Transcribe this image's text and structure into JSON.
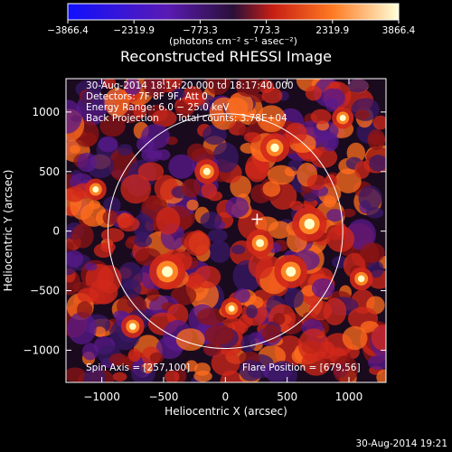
{
  "chart_data": {
    "type": "heatmap",
    "title": "Reconstructed RHESSI Image",
    "xlabel": "Heliocentric X (arcsec)",
    "ylabel": "Heliocentric Y (arcsec)",
    "xlim": [
      -1290,
      1300
    ],
    "ylim": [
      -1270,
      1280
    ],
    "x_ticks": [
      -1000,
      -500,
      0,
      500,
      1000
    ],
    "x_tick_labels": [
      "−1000",
      "−500",
      "0",
      "500",
      "1000"
    ],
    "y_ticks": [
      -1000,
      -500,
      0,
      500,
      1000
    ],
    "y_tick_labels": [
      "−1000",
      "−500",
      "0",
      "500",
      "1000"
    ],
    "colorbar": {
      "range": [
        -3866.4,
        3866.4
      ],
      "tick_values": [
        -3866.4,
        -2319.9,
        -773.3,
        773.3,
        2319.9,
        3866.4
      ],
      "tick_labels": [
        "−3866.4",
        "−2319.9",
        "−773.3",
        "773.3",
        "2319.9",
        "3866.4"
      ],
      "units": "(photons cm⁻² s⁻¹ asec⁻²)",
      "colors": [
        "#1010ff",
        "#5a1ab4",
        "#3a1664",
        "#e62a14",
        "#ffac2c",
        "#ffffc8"
      ]
    },
    "info_lines": [
      "30-Aug-2014 18:14:20.000 to 18:17:40.000",
      "Detectors: 7F 8F 9F, Att 0",
      "Energy Range: 6.0 − 25.0 keV",
      "Back Projection      Total counts: 3.78E+04"
    ],
    "spin_axis_label": "Spin Axis = [257,100]",
    "flare_position_label": "Flare Position = [679,56]",
    "solar_disk": {
      "center": [
        0,
        0
      ],
      "radius": 950,
      "color": "#ffffff"
    },
    "marker": {
      "x": 257,
      "y": 100,
      "symbol": "+"
    },
    "bright_sources": [
      {
        "x": -470,
        "y": -340,
        "level": 1.0
      },
      {
        "x": 680,
        "y": 60,
        "level": 0.95
      },
      {
        "x": 530,
        "y": -340,
        "level": 0.9
      },
      {
        "x": 400,
        "y": 700,
        "level": 0.75
      },
      {
        "x": 280,
        "y": -100,
        "level": 0.7
      },
      {
        "x": -150,
        "y": 500,
        "level": 0.6
      },
      {
        "x": -750,
        "y": -800,
        "level": 0.55
      },
      {
        "x": 1100,
        "y": -400,
        "level": 0.55
      },
      {
        "x": -1050,
        "y": 350,
        "level": 0.5
      },
      {
        "x": 950,
        "y": 950,
        "level": 0.5
      },
      {
        "x": 50,
        "y": -650,
        "level": 0.5
      }
    ]
  },
  "footer": {
    "timestamp": "30-Aug-2014 19:21"
  }
}
